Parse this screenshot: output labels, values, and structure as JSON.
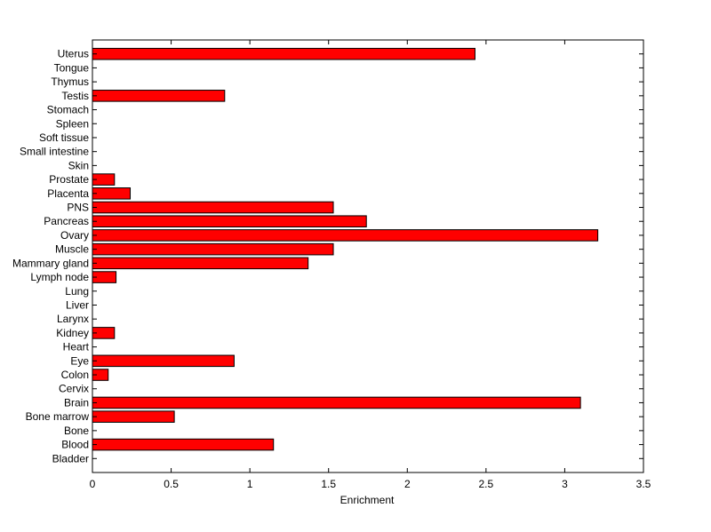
{
  "chart_data": {
    "type": "bar",
    "orientation": "horizontal",
    "categories": [
      "Bladder",
      "Blood",
      "Bone",
      "Bone marrow",
      "Brain",
      "Cervix",
      "Colon",
      "Eye",
      "Heart",
      "Kidney",
      "Larynx",
      "Liver",
      "Lung",
      "Lymph node",
      "Mammary gland",
      "Muscle",
      "Ovary",
      "Pancreas",
      "PNS",
      "Placenta",
      "Prostate",
      "Skin",
      "Small intestine",
      "Soft tissue",
      "Spleen",
      "Stomach",
      "Testis",
      "Thymus",
      "Tongue",
      "Uterus"
    ],
    "values": [
      0,
      1.15,
      0,
      0.52,
      3.1,
      0,
      0.1,
      0.9,
      0,
      0.14,
      0,
      0,
      0,
      0.15,
      1.37,
      1.53,
      3.21,
      1.74,
      1.53,
      0.24,
      0.14,
      0,
      0,
      0,
      0,
      0,
      0.84,
      0,
      0,
      2.43
    ],
    "xlabel": "Enrichment",
    "ylabel": "",
    "title": "",
    "xlim": [
      0,
      3.5
    ],
    "xticks": [
      "0",
      "0.5",
      "1",
      "1.5",
      "2",
      "2.5",
      "3",
      "3.5"
    ],
    "bar_color": "#ff0000",
    "bar_edge_color": "#000000",
    "grid": false
  }
}
